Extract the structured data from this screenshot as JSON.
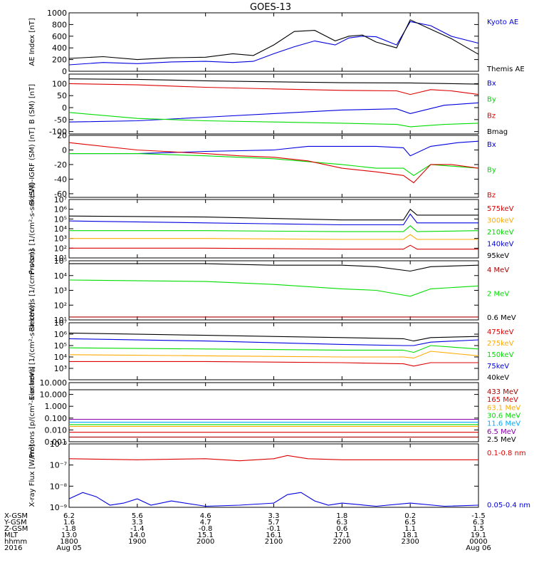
{
  "title": "GOES-13",
  "colors": {
    "black": "#000000",
    "blue": "#0000e0",
    "green": "#00dd00",
    "red": "#dd0000",
    "orange": "#ffaa00",
    "cyan": "#00aaff",
    "purple": "#8800aa",
    "darkred": "#aa0000"
  },
  "chart_data": [
    {
      "type": "line",
      "ylabel": "AE Index [nT]",
      "ylim": [
        0,
        1000
      ],
      "ticks": [
        "1000",
        "800",
        "600",
        "400",
        "200",
        "0"
      ],
      "tick_values": [
        1000,
        800,
        600,
        400,
        200,
        0
      ],
      "series": [
        {
          "name": "Kyoto AE",
          "color": "#0000e0",
          "x": [
            0,
            0.5,
            1,
            1.5,
            2,
            2.4,
            2.7,
            3.0,
            3.3,
            3.6,
            3.9,
            4.1,
            4.3,
            4.5,
            4.8,
            5.0,
            5.3,
            5.6,
            6.0
          ],
          "values": [
            110,
            150,
            130,
            160,
            170,
            150,
            170,
            300,
            420,
            520,
            450,
            570,
            600,
            590,
            450,
            850,
            780,
            600,
            480
          ]
        },
        {
          "name": "Themis AE",
          "color": "#000000",
          "x": [
            0,
            0.5,
            1,
            1.5,
            2,
            2.4,
            2.7,
            3.0,
            3.3,
            3.6,
            3.9,
            4.1,
            4.3,
            4.5,
            4.8,
            5.0,
            5.3,
            5.6,
            6.0
          ],
          "values": [
            220,
            250,
            200,
            230,
            240,
            300,
            270,
            450,
            680,
            700,
            520,
            600,
            620,
            500,
            400,
            880,
            720,
            560,
            290
          ]
        }
      ]
    },
    {
      "type": "line",
      "ylabel": "B (SM) [nT]",
      "ylim": [
        -110,
        140
      ],
      "ticks": [
        "150",
        "100",
        "50",
        "0",
        "-50",
        "-100"
      ],
      "tick_values": [
        150,
        100,
        50,
        0,
        -50,
        -100
      ],
      "series": [
        {
          "name": "Bx",
          "color": "#0000e0",
          "x": [
            0,
            1,
            2,
            3,
            4,
            4.8,
            5.0,
            5.5,
            6.0
          ],
          "values": [
            -60,
            -55,
            -40,
            -25,
            -10,
            -5,
            -25,
            10,
            20
          ]
        },
        {
          "name": "By",
          "color": "#00dd00",
          "x": [
            0,
            1,
            2,
            3,
            4,
            4.8,
            5.0,
            5.5,
            6.0
          ],
          "values": [
            -20,
            -45,
            -55,
            -60,
            -65,
            -70,
            -80,
            -70,
            -65
          ]
        },
        {
          "name": "Bz",
          "color": "#dd0000",
          "x": [
            0,
            1,
            2,
            3,
            4,
            4.8,
            5.0,
            5.3,
            5.6,
            6.0
          ],
          "values": [
            100,
            95,
            85,
            78,
            72,
            70,
            55,
            75,
            70,
            55
          ]
        },
        {
          "name": "Bmag",
          "color": "#000000",
          "x": [
            0,
            1,
            2,
            3,
            4,
            5,
            6.0
          ],
          "values": [
            120,
            118,
            112,
            108,
            104,
            103,
            98
          ]
        }
      ]
    },
    {
      "type": "line",
      "ylabel": "B (SM)-IGRF (SM) [nT]",
      "ylim": [
        -65,
        20
      ],
      "ticks": [
        "20",
        "0",
        "-20",
        "-40",
        "-60"
      ],
      "tick_values": [
        20,
        0,
        -20,
        -40,
        -60
      ],
      "series": [
        {
          "name": "Bx",
          "color": "#0000e0",
          "x": [
            0,
            1,
            2,
            3,
            3.5,
            4,
            4.5,
            4.9,
            5.0,
            5.3,
            5.7,
            6.0
          ],
          "values": [
            -5,
            -5,
            -2,
            0,
            5,
            5,
            5,
            3,
            -8,
            5,
            10,
            12
          ]
        },
        {
          "name": "By",
          "color": "#00dd00",
          "x": [
            0,
            1,
            2,
            3,
            4,
            4.5,
            4.9,
            5.05,
            5.3,
            6.0
          ],
          "values": [
            -5,
            -5,
            -8,
            -12,
            -20,
            -25,
            -25,
            -35,
            -20,
            -25
          ]
        },
        {
          "name": "Bz",
          "color": "#dd0000",
          "x": [
            0,
            1,
            2,
            2.5,
            3,
            3.5,
            4,
            4.5,
            4.9,
            5.05,
            5.3,
            5.6,
            6.0
          ],
          "values": [
            10,
            0,
            -5,
            -8,
            -10,
            -15,
            -25,
            -30,
            -35,
            -45,
            -20,
            -20,
            -25
          ]
        }
      ]
    },
    {
      "type": "line",
      "log": true,
      "ylabel": "Protons [1/(cm²-s-sr-keV)]",
      "ylim": [
        1,
        7
      ],
      "ticks": [
        "10⁷",
        "10⁶",
        "10⁵",
        "10⁴",
        "10³",
        "10²",
        "10¹"
      ],
      "tick_values": [
        7,
        6,
        5,
        4,
        3,
        2,
        1
      ],
      "series": [
        {
          "name": "575keV",
          "color": "#dd0000",
          "x": [
            0,
            2,
            4,
            4.9,
            5.0,
            5.1,
            6.0
          ],
          "values": [
            2,
            2,
            1.9,
            1.9,
            2.3,
            1.9,
            1.9
          ]
        },
        {
          "name": "300keV",
          "color": "#ffaa00",
          "x": [
            0,
            2,
            4,
            4.9,
            5.0,
            5.1,
            6.0
          ],
          "values": [
            3,
            3,
            2.9,
            2.9,
            3.4,
            2.9,
            2.9
          ]
        },
        {
          "name": "210keV",
          "color": "#00dd00",
          "x": [
            0,
            2,
            4,
            4.9,
            5.0,
            5.1,
            6.0
          ],
          "values": [
            3.8,
            3.8,
            3.7,
            3.7,
            4.3,
            3.7,
            3.8
          ]
        },
        {
          "name": "140keV",
          "color": "#0000e0",
          "x": [
            0,
            2,
            4,
            4.9,
            5.0,
            5.1,
            6.0
          ],
          "values": [
            4.8,
            4.6,
            4.4,
            4.4,
            5.5,
            4.6,
            4.6
          ]
        },
        {
          "name": "95keV",
          "color": "#000000",
          "x": [
            0,
            2,
            4,
            4.9,
            5.0,
            5.1,
            6.0
          ],
          "values": [
            5.3,
            5.2,
            4.9,
            4.9,
            6,
            5.4,
            5.4
          ]
        }
      ]
    },
    {
      "type": "line",
      "log": true,
      "ylabel": "Electrons [1/(cm²-s-sr)]",
      "ylim": [
        1,
        5
      ],
      "ticks": [
        "10⁵",
        "10⁴",
        "10³",
        "10²",
        "10¹"
      ],
      "tick_values": [
        5,
        4,
        3,
        2,
        1
      ],
      "series": [
        {
          "name": "4 MeV",
          "color": "#aa0000",
          "x": [
            0,
            6.0
          ],
          "values": [
            1.2,
            1.2
          ]
        },
        {
          "name": "2 MeV",
          "color": "#00dd00",
          "x": [
            0,
            2,
            3,
            4,
            4.5,
            5.0,
            5.3,
            6.0
          ],
          "values": [
            3.7,
            3.6,
            3.4,
            3.1,
            3.0,
            2.6,
            3.1,
            3.3
          ]
        },
        {
          "name": "0.6 MeV",
          "color": "#000000",
          "x": [
            0,
            2,
            3,
            4,
            4.5,
            5.0,
            5.3,
            6.0
          ],
          "values": [
            4.8,
            4.8,
            4.7,
            4.7,
            4.6,
            4.3,
            4.6,
            4.7
          ]
        }
      ]
    },
    {
      "type": "line",
      "log": true,
      "ylabel": "Electrons [1/(cm²-s-sr-keV)]",
      "ylim": [
        2,
        7
      ],
      "ticks": [
        "10⁷",
        "10⁶",
        "10⁵",
        "10⁴",
        "10³"
      ],
      "tick_values": [
        7,
        6,
        5,
        4,
        3
      ],
      "series": [
        {
          "name": "475keV",
          "color": "#dd0000",
          "x": [
            0,
            2,
            4,
            4.9,
            5.05,
            5.3,
            6.0
          ],
          "values": [
            3.6,
            3.6,
            3.5,
            3.4,
            3.2,
            3.5,
            3.5
          ]
        },
        {
          "name": "275keV",
          "color": "#ffaa00",
          "x": [
            0,
            2,
            4,
            4.9,
            5.05,
            5.3,
            6.0
          ],
          "values": [
            4.2,
            4.1,
            4.0,
            4.0,
            3.9,
            4.5,
            4.1
          ]
        },
        {
          "name": "150keV",
          "color": "#00dd00",
          "x": [
            0,
            2,
            4,
            4.9,
            5.05,
            5.3,
            6.0
          ],
          "values": [
            4.8,
            4.7,
            4.6,
            4.6,
            4.4,
            5.0,
            4.7
          ]
        },
        {
          "name": "75keV",
          "color": "#0000e0",
          "x": [
            0,
            2,
            4,
            4.9,
            5.05,
            5.3,
            6.0
          ],
          "values": [
            5.6,
            5.4,
            5.1,
            5.0,
            5.0,
            5.3,
            5.5
          ]
        },
        {
          "name": "40keV",
          "color": "#000000",
          "x": [
            0,
            2,
            4,
            4.9,
            5.05,
            5.3,
            6.0
          ],
          "values": [
            6.1,
            5.9,
            5.7,
            5.6,
            5.4,
            5.7,
            5.8
          ]
        }
      ]
    },
    {
      "type": "line",
      "log": true,
      "ylabel": "Protons [p/(cm²-s-sr-keV)]",
      "ylim": [
        -3,
        2
      ],
      "ticks": [
        "10.000",
        "10.000",
        "1.000",
        "0.100",
        "0.010",
        "0.001"
      ],
      "tick_values": [
        2,
        1,
        0,
        -1,
        -2,
        -3
      ],
      "series": [
        {
          "name": "433 MeV",
          "color": "#aa0000",
          "x": [
            0,
            6.0
          ],
          "values": [
            -2.6,
            -2.6
          ]
        },
        {
          "name": "165 MeV",
          "color": "#dd0000",
          "x": [
            0,
            6.0
          ],
          "values": [
            -2.2,
            -2.2
          ]
        },
        {
          "name": "63.1 MeV",
          "color": "#ffaa00",
          "x": [
            0,
            6.0
          ],
          "values": [
            -1.7,
            -1.7
          ]
        },
        {
          "name": "30.6 MeV",
          "color": "#00dd00",
          "x": [
            0,
            6.0
          ],
          "values": [
            -1.55,
            -1.55
          ]
        },
        {
          "name": "11.6 MeV",
          "color": "#00aaff",
          "x": [
            0,
            6.0
          ],
          "values": [
            -1.35,
            -1.35
          ]
        },
        {
          "name": "6.5 MeV",
          "color": "#8800aa",
          "x": [
            0,
            6.0
          ],
          "values": [
            -1.1,
            -1.1
          ]
        },
        {
          "name": "2.5 MeV",
          "color": "#000000",
          "x": [
            0,
            6.0
          ],
          "values": [
            1.4,
            1.4
          ]
        }
      ]
    },
    {
      "type": "line",
      "log": true,
      "ylabel": "X-ray Flux [W/m²]",
      "ylim": [
        -9,
        -6
      ],
      "ticks": [
        "10⁻⁶",
        "10⁻⁷",
        "10⁻⁸",
        "10⁻⁹"
      ],
      "tick_values": [
        -6,
        -7,
        -8,
        -9
      ],
      "series": [
        {
          "name": "0.1-0.8 nm",
          "color": "#dd0000",
          "x": [
            0,
            1,
            2,
            2.5,
            3,
            3.2,
            3.5,
            4,
            5,
            6.0
          ],
          "values": [
            -6.7,
            -6.75,
            -6.7,
            -6.8,
            -6.7,
            -6.55,
            -6.7,
            -6.75,
            -6.75,
            -6.75
          ]
        },
        {
          "name": "0.05-0.4 nm",
          "color": "#0000e0",
          "x": [
            0,
            0.2,
            0.4,
            0.6,
            0.8,
            1,
            1.2,
            1.5,
            2,
            2.5,
            3,
            3.2,
            3.4,
            3.6,
            3.8,
            4,
            4.5,
            5,
            5.5,
            6.0
          ],
          "values": [
            -8.6,
            -8.3,
            -8.5,
            -8.9,
            -8.8,
            -8.6,
            -8.9,
            -8.7,
            -8.95,
            -8.9,
            -8.8,
            -8.4,
            -8.3,
            -8.7,
            -8.9,
            -8.8,
            -8.95,
            -8.8,
            -8.95,
            -8.9
          ]
        }
      ]
    }
  ],
  "x_axis": {
    "row_labels": [
      "X-GSM",
      "Y-GSM",
      "Z-GSM",
      "MLT",
      "hhmm",
      "2016"
    ],
    "columns": [
      {
        "t": 0,
        "values": [
          "6.2",
          "1.6",
          "-1.8",
          "13.0",
          "1800",
          "Aug 05"
        ]
      },
      {
        "t": 1,
        "values": [
          "5.6",
          "3.3",
          "-1.4",
          "14.0",
          "1900",
          ""
        ]
      },
      {
        "t": 2,
        "values": [
          "4.6",
          "4.7",
          "-0.8",
          "15.1",
          "2000",
          ""
        ]
      },
      {
        "t": 3,
        "values": [
          "3.3",
          "5.7",
          "-0.1",
          "16.1",
          "2100",
          ""
        ]
      },
      {
        "t": 4,
        "values": [
          "1.8",
          "6.3",
          "0.6",
          "17.1",
          "2200",
          ""
        ]
      },
      {
        "t": 5,
        "values": [
          "0.2",
          "6.5",
          "1.1",
          "18.1",
          "2300",
          ""
        ]
      },
      {
        "t": 6,
        "values": [
          "-1.5",
          "6.3",
          "1.5",
          "19.1",
          "0000",
          "Aug 06"
        ]
      }
    ]
  }
}
